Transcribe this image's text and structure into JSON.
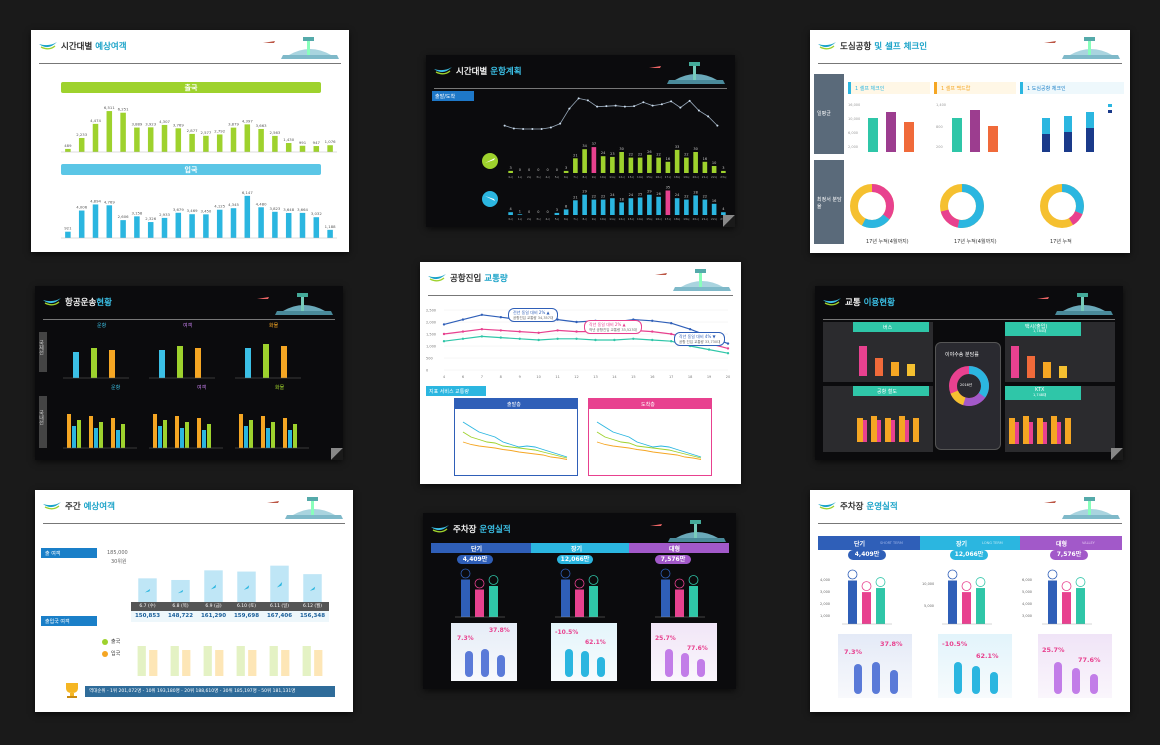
{
  "slides": {
    "s1": {
      "title_a": "시간대별 ",
      "title_b": "예상여객",
      "band_out": "출국",
      "band_in": "입국",
      "out_values": [
        489,
        2233,
        4474,
        6511,
        6251,
        3889,
        3923,
        4307,
        3769,
        2877,
        2577,
        2792,
        3879,
        4397,
        3663,
        2563,
        1430,
        991,
        947,
        1076
      ],
      "out_labels": [
        "489",
        "2,233",
        "4,474",
        "6,511",
        "6,251",
        "3,889",
        "3,923",
        "4,307",
        "3,769",
        "2,877",
        "2,577",
        "2,792",
        "3,879",
        "4,397",
        "3,663",
        "2,563",
        "1,430",
        "991",
        "947",
        "1,076"
      ],
      "in_values": [
        921,
        4006,
        4894,
        4769,
        2606,
        3158,
        2326,
        2933,
        3679,
        3469,
        3450,
        4125,
        4345,
        6147,
        4480,
        3823,
        3648,
        3664,
        3032,
        1188
      ],
      "in_labels": [
        "921",
        "4,006",
        "4,894",
        "4,769",
        "2,606",
        "3,158",
        "2,326",
        "2,933",
        "3,679",
        "3,469",
        "3,450",
        "4,125",
        "4,345",
        "6,147",
        "4,480",
        "3,823",
        "3,648",
        "3,664",
        "3,032",
        "1,188"
      ],
      "out_ticks": [
        "7,000",
        "5,400",
        "4,200",
        "0"
      ],
      "in_ticks": [
        "9,300",
        "0"
      ]
    },
    "s2": {
      "title_a": "시간대별 ",
      "title_b": "운항계획",
      "badge": "출발/도착",
      "hours": [
        "0시",
        "1시",
        "2시",
        "3시",
        "4시",
        "5시",
        "6시",
        "7시",
        "8시",
        "9시",
        "10시",
        "11시",
        "12시",
        "13시",
        "14시",
        "15시",
        "16시",
        "17시",
        "18시",
        "19시",
        "20시",
        "21시",
        "22시",
        "23시"
      ],
      "dep_values": [
        3,
        0,
        0,
        0,
        0,
        0,
        3,
        21,
        34,
        37,
        24,
        23,
        30,
        22,
        22,
        26,
        22,
        16,
        33,
        22,
        30,
        16,
        10,
        3
      ],
      "arr_values": [
        4,
        1,
        0,
        0,
        0,
        3,
        8,
        21,
        29,
        22,
        22,
        24,
        18,
        24,
        25,
        29,
        26,
        35,
        24,
        22,
        28,
        22,
        16,
        4
      ]
    },
    "s3": {
      "title_a": "도심공항 ",
      "title_b": "및 셀프 체크인",
      "col1": "1 셀프 체크인",
      "col2": "1 셀프 백드랍",
      "col3": "1 도심공항 체크인",
      "row1": "일평균",
      "row2": "최정서 분담율",
      "foot1": "17년 누적(4월까지)",
      "foot2": "17년 누적(4월까지)",
      "foot3": "17년 누적"
    },
    "s4": {
      "title_a": "항공운송",
      "title_b": "현황",
      "top_labels": [
        "운항",
        "여객",
        "화물"
      ],
      "bottom_labels": [
        "운항",
        "여객",
        "화물"
      ],
      "left_top": "국제선",
      "left_bottom": "국내선"
    },
    "s5": {
      "title_a": "공항진입 ",
      "title_b": "교통량",
      "ann1": "전년 동일 대비 2% ▲",
      "ann1b": "공항진입 교통량 34,357대",
      "ann2": "작년 동일 대비 2% ▲",
      "ann2b": "작년 공항진입 교통량 33,523대",
      "ann3": "작년 동일 대비 4% ▼",
      "ann3b": "공항 진입 교통량 33,730대",
      "section": "지표 서비스 교통량",
      "box1": "출발층",
      "box2": "도착층",
      "y_ticks": [
        "2,500",
        "2,000",
        "1,500",
        "1,000",
        "500",
        "0"
      ],
      "x_ticks": [
        "4",
        "6",
        "7",
        "8",
        "9",
        "10",
        "11",
        "12",
        "13",
        "14",
        "15",
        "16",
        "17",
        "18",
        "19",
        "20"
      ]
    },
    "s6": {
      "title_a": "교통 ",
      "title_b": "이용현황",
      "p1": "버스",
      "p2": "택시(출입)",
      "p3": "공항 철도",
      "p4": "KTX",
      "center": "이야수송 분담률",
      "center_year": "2016년",
      "sub1": "1,784대",
      "sub2": "1,748대"
    },
    "s7": {
      "title_a": "주간 ",
      "title_b": "예상여객",
      "out_label": "출 여객",
      "in_label": "출입국 여객",
      "y_top": "185,000",
      "y_mid": "30위원",
      "dates": [
        "6.7 (수)",
        "6.8 (목)",
        "6.9 (금)",
        "6.10 (토)",
        "6.11 (일)",
        "6.12 (월)"
      ],
      "totals": [
        "150,853",
        "148,722",
        "161,290",
        "159,698",
        "167,406",
        "156,348"
      ],
      "legend_out": "출국",
      "legend_in": "입국",
      "ranking": "역대순위  - 1위 201,072명  - 10위 193,180명 - 20위 188,610명  - 30위 185,197명 - 50위 181,131명"
    },
    "s8": {
      "title_a": "주차장 ",
      "title_b": "운영실적",
      "cats": [
        "단기",
        "장기",
        "대형"
      ],
      "totals": [
        "4,409만",
        "12,066만",
        "7,576만"
      ],
      "pcts": [
        "7.3%",
        "37.8%",
        "-10.5%",
        "62.1%",
        "25.7%",
        "77.6%"
      ]
    },
    "s9": {
      "title_a": "주차장 ",
      "title_b": "운영실적",
      "cats": [
        "단기",
        "장기",
        "대형"
      ],
      "subs": [
        "SHORT TERM",
        "LONG TERM",
        "VALLEY"
      ],
      "totals": [
        "4,409만",
        "12,066만",
        "7,576만"
      ],
      "pcts": [
        "7.3%",
        "37.8%",
        "-10.5%",
        "62.1%",
        "25.7%",
        "77.6%"
      ],
      "yt1": [
        "4,000",
        "3,000",
        "2,000",
        "1,000"
      ],
      "yt2": [
        "10,000",
        "5,000"
      ],
      "yt3": [
        "6,000",
        "5,000",
        "4,000",
        "3,000"
      ]
    }
  },
  "colors": {
    "bg": "#1a1a1a",
    "green": "#9ed22d",
    "cyan": "#2bb6e0",
    "pink": "#e8418f",
    "blue": "#2f5fb8",
    "purple": "#a259c9"
  }
}
